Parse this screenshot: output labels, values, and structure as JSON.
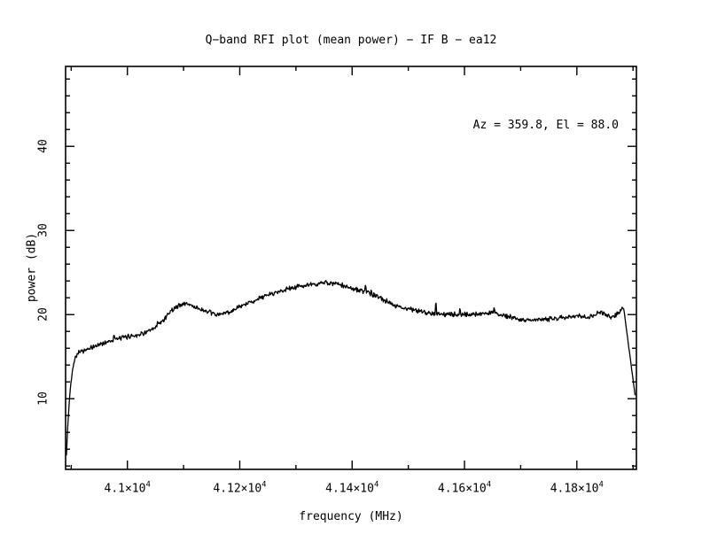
{
  "title": "Q−band RFI plot (mean power) − IF B − ea12",
  "chart_data": {
    "type": "line",
    "title": "Q−band RFI plot (mean power) − IF B − ea12",
    "annotation": "Az = 359.8, El = 88.0",
    "xlabel": "frequency (MHz)",
    "ylabel": "power (dB)",
    "xlim": [
      40890,
      41906
    ],
    "ylim": [
      1.6,
      49.5
    ],
    "grid": false,
    "legend": "none",
    "line_color": "#000000",
    "background": "#ffffff",
    "x_ticks": {
      "major": [
        {
          "value": 41000,
          "mantissa": "4.1×10",
          "exp": "4"
        },
        {
          "value": 41200,
          "mantissa": "4.12×10",
          "exp": "4"
        },
        {
          "value": 41400,
          "mantissa": "4.14×10",
          "exp": "4"
        },
        {
          "value": 41600,
          "mantissa": "4.16×10",
          "exp": "4"
        },
        {
          "value": 41800,
          "mantissa": "4.18×10",
          "exp": "4"
        }
      ],
      "minor_step": 100
    },
    "y_ticks": {
      "major": [
        {
          "value": 10,
          "label": "10"
        },
        {
          "value": 20,
          "label": "20"
        },
        {
          "value": 30,
          "label": "30"
        },
        {
          "value": 40,
          "label": "40"
        }
      ],
      "minor_step": 2
    },
    "series": [
      {
        "name": "mean power",
        "color": "#000000",
        "noise_db": 0.34,
        "sample_step_mhz": 1,
        "anchors": [
          [
            40891.5,
            3.3
          ],
          [
            40894,
            7.0
          ],
          [
            40898,
            11.0
          ],
          [
            40903,
            13.8
          ],
          [
            40908,
            15.1
          ],
          [
            40914,
            15.6
          ],
          [
            40928,
            15.8
          ],
          [
            40948,
            16.4
          ],
          [
            40972,
            16.95
          ],
          [
            40998,
            17.35
          ],
          [
            41022,
            17.65
          ],
          [
            41046,
            18.2
          ],
          [
            41062,
            19.2
          ],
          [
            41078,
            20.5
          ],
          [
            41092,
            21.1
          ],
          [
            41105,
            21.35
          ],
          [
            41122,
            20.85
          ],
          [
            41142,
            20.3
          ],
          [
            41162,
            19.95
          ],
          [
            41185,
            20.4
          ],
          [
            41208,
            21.15
          ],
          [
            41235,
            21.95
          ],
          [
            41262,
            22.6
          ],
          [
            41292,
            23.15
          ],
          [
            41322,
            23.5
          ],
          [
            41352,
            23.8
          ],
          [
            41375,
            23.6
          ],
          [
            41398,
            23.15
          ],
          [
            41422,
            22.7
          ],
          [
            41448,
            22.05
          ],
          [
            41478,
            21.05
          ],
          [
            41508,
            20.55
          ],
          [
            41535,
            20.25
          ],
          [
            41562,
            20.0
          ],
          [
            41598,
            20.0
          ],
          [
            41628,
            20.1
          ],
          [
            41655,
            20.2
          ],
          [
            41680,
            19.7
          ],
          [
            41712,
            19.3
          ],
          [
            41742,
            19.45
          ],
          [
            41765,
            19.55
          ],
          [
            41792,
            19.85
          ],
          [
            41820,
            19.7
          ],
          [
            41845,
            20.3
          ],
          [
            41862,
            19.6
          ],
          [
            41876,
            20.3
          ],
          [
            41883,
            20.9
          ],
          [
            41904,
            10.3
          ]
        ],
        "spikes": [
          {
            "x": 40976,
            "dy": 0.9
          },
          {
            "x": 41054,
            "dy": 0.7
          },
          {
            "x": 41305,
            "dy": 0.6
          },
          {
            "x": 41424,
            "dy": 1.2
          },
          {
            "x": 41434,
            "dy": 0.8
          },
          {
            "x": 41549,
            "dy": 1.7
          },
          {
            "x": 41592,
            "dy": 0.8
          },
          {
            "x": 41653,
            "dy": 0.8
          }
        ]
      }
    ]
  }
}
